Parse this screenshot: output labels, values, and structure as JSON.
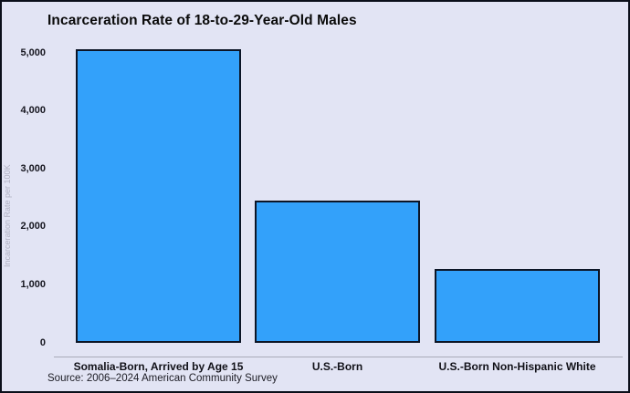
{
  "chart_data": {
    "type": "bar",
    "title": "Incarceration Rate of 18-to-29-Year-Old Males",
    "categories": [
      "Somalia-Born, Arrived by Age 15",
      "U.S.-Born",
      "U.S.-Born Non-Hispanic White"
    ],
    "values": [
      5060,
      2460,
      1280
    ],
    "xlabel": "",
    "ylabel": "Incarceration Rate per 100K",
    "ylim": [
      0,
      5000
    ],
    "yticks": [
      {
        "value": 0,
        "label": "0"
      },
      {
        "value": 1000,
        "label": "1,000"
      },
      {
        "value": 2000,
        "label": "2,000"
      },
      {
        "value": 3000,
        "label": "3,000"
      },
      {
        "value": 4000,
        "label": "4,000"
      },
      {
        "value": 5000,
        "label": "5,000"
      }
    ],
    "grid": false,
    "legend": "none",
    "source": "Source: 2006–2024 American Community Survey",
    "colors": {
      "bar_fill": "#33a1fa",
      "bar_border": "#0c1526",
      "background": "#e2e4f4",
      "frame_border": "#0b0f1a",
      "axis_line": "#a9aab8",
      "ylabel_text": "#aeafc0",
      "text": "#0a0a0a"
    }
  }
}
